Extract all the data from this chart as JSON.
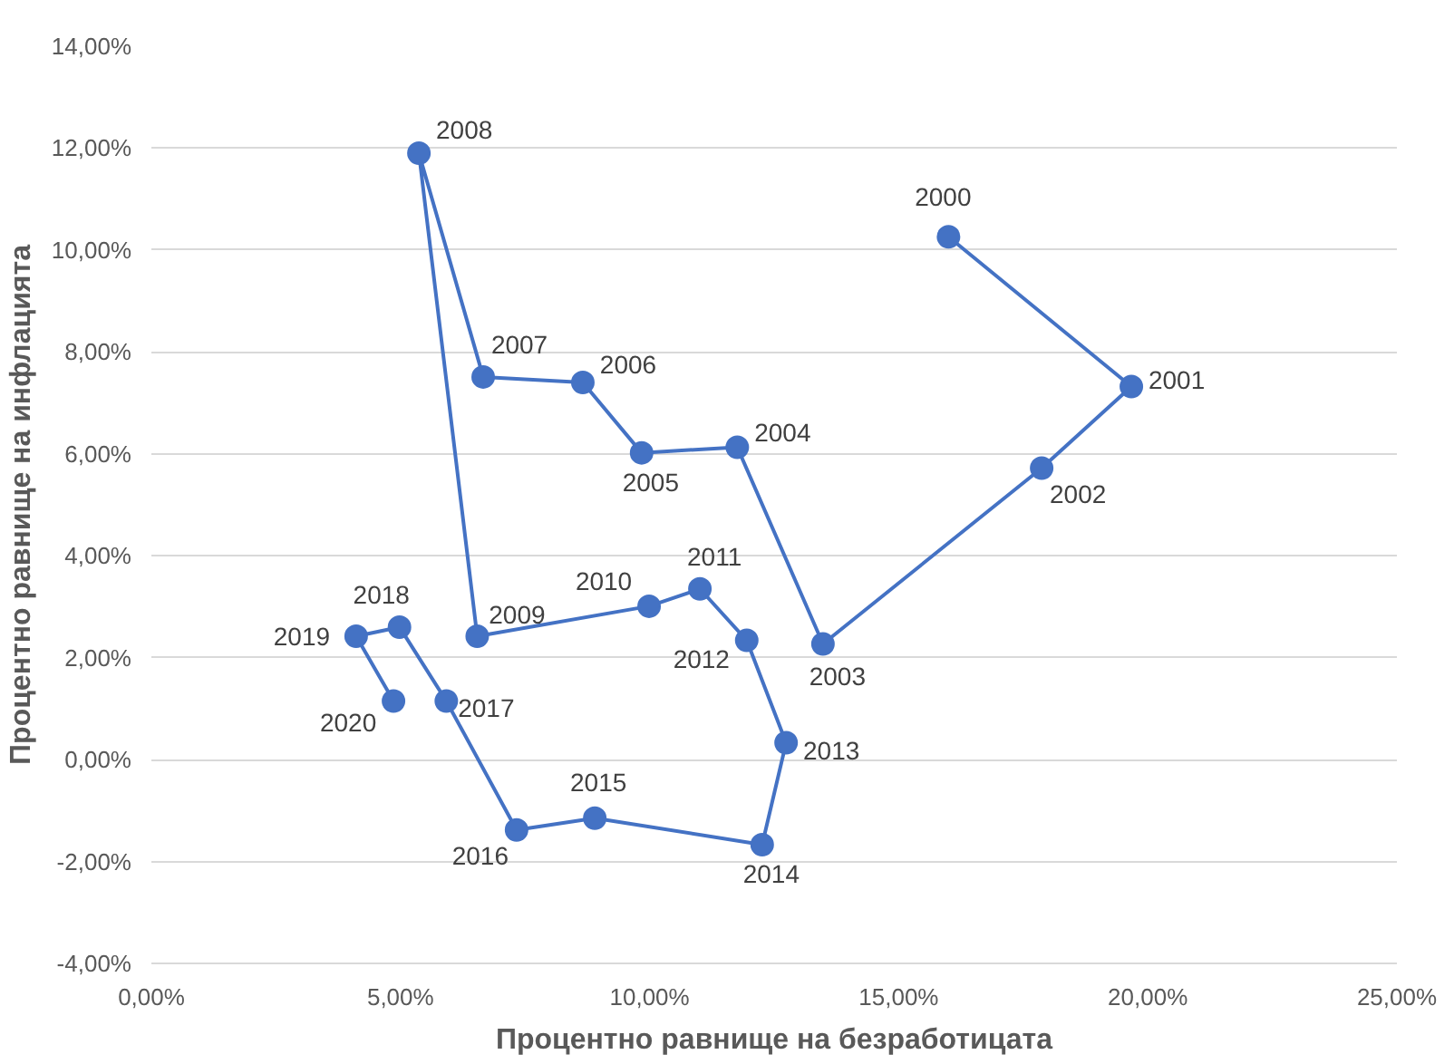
{
  "chart_data": {
    "type": "line",
    "xlabel": "Процентно равнище на безработицата",
    "ylabel": "Процентно равнище на инфлацията",
    "x": [
      16.0,
      19.67,
      17.87,
      13.48,
      11.76,
      9.84,
      8.66,
      6.66,
      5.37,
      6.54,
      9.99,
      11.01,
      11.95,
      12.74,
      12.26,
      8.9,
      7.33,
      5.92,
      4.98,
      4.11,
      4.86
    ],
    "series": [
      {
        "color": "#4472c4",
        "values": [
          10.26,
          7.32,
          5.72,
          2.27,
          6.13,
          6.02,
          7.4,
          7.51,
          11.9,
          2.42,
          3.01,
          3.35,
          2.34,
          0.33,
          -1.67,
          -1.15,
          -1.38,
          1.15,
          2.6,
          2.42,
          1.15
        ]
      }
    ],
    "annotations": [
      {
        "text": "2000",
        "x": 16.0,
        "y": 10.26
      },
      {
        "text": "2001",
        "x": 19.67,
        "y": 7.32
      },
      {
        "text": "2002",
        "x": 17.87,
        "y": 5.72
      },
      {
        "text": "2003",
        "x": 13.48,
        "y": 2.27
      },
      {
        "text": "2004",
        "x": 11.76,
        "y": 6.13
      },
      {
        "text": "2005",
        "x": 9.84,
        "y": 6.02
      },
      {
        "text": "2006",
        "x": 8.66,
        "y": 7.4
      },
      {
        "text": "2007",
        "x": 6.66,
        "y": 7.51
      },
      {
        "text": "2008",
        "x": 5.37,
        "y": 11.9
      },
      {
        "text": "2009",
        "x": 6.54,
        "y": 2.42
      },
      {
        "text": "2010",
        "x": 9.99,
        "y": 3.01
      },
      {
        "text": "2011",
        "x": 11.01,
        "y": 3.35
      },
      {
        "text": "2012",
        "x": 11.95,
        "y": 2.34
      },
      {
        "text": "2013",
        "x": 12.74,
        "y": 0.33
      },
      {
        "text": "2014",
        "x": 12.26,
        "y": -1.67
      },
      {
        "text": "2015",
        "x": 8.9,
        "y": -1.15
      },
      {
        "text": "2016",
        "x": 7.33,
        "y": -1.38
      },
      {
        "text": "2017",
        "x": 5.92,
        "y": 1.15
      },
      {
        "text": "2018",
        "x": 4.98,
        "y": 2.6
      },
      {
        "text": "2019",
        "x": 4.11,
        "y": 2.42
      },
      {
        "text": "2020",
        "x": 4.86,
        "y": 1.15
      }
    ],
    "xlim": [
      0,
      25
    ],
    "xticks": [
      {
        "value": 0,
        "label": "0,00%"
      },
      {
        "value": 5,
        "label": "5,00%"
      },
      {
        "value": 10,
        "label": "10,00%"
      },
      {
        "value": 15,
        "label": "15,00%"
      },
      {
        "value": 20,
        "label": "20,00%"
      },
      {
        "value": 25,
        "label": "25,00%"
      }
    ],
    "ylim": [
      -4,
      14
    ],
    "yticks": [
      {
        "value": -4,
        "label": "-4,00%"
      },
      {
        "value": -2,
        "label": "-2,00%"
      },
      {
        "value": 0,
        "label": "0,00%"
      },
      {
        "value": 2,
        "label": "2,00%"
      },
      {
        "value": 4,
        "label": "4,00%"
      },
      {
        "value": 6,
        "label": "6,00%"
      },
      {
        "value": 8,
        "label": "8,00%"
      },
      {
        "value": 10,
        "label": "10,00%"
      },
      {
        "value": 12,
        "label": "12,00%"
      },
      {
        "value": 14,
        "label": "14,00%"
      }
    ],
    "grid": "y",
    "marker": "circle",
    "line_style": "solid"
  }
}
